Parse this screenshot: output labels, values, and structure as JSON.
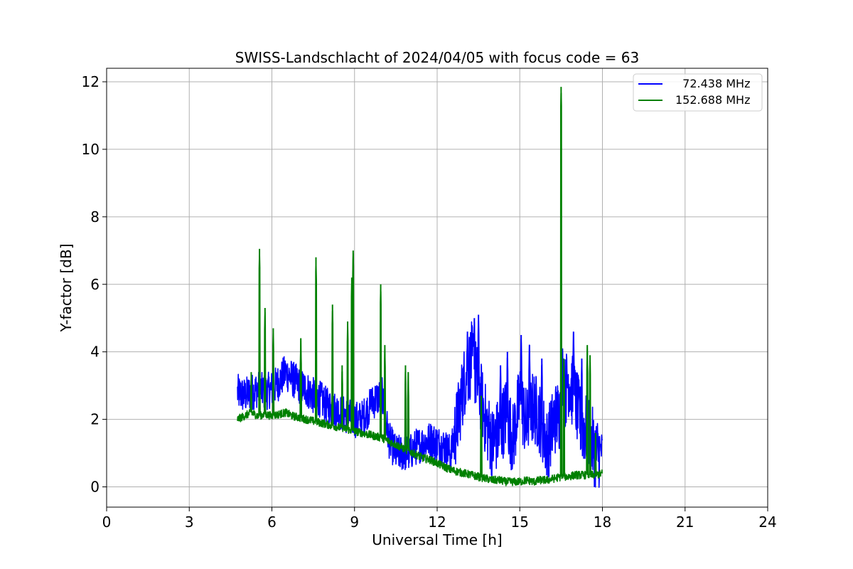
{
  "chart_data": {
    "type": "line",
    "title": "SWISS-Landschlacht of 2024/04/05 with focus code = 63",
    "xlabel": "Universal Time [h]",
    "ylabel": "Y-factor [dB]",
    "xlim": [
      0,
      24
    ],
    "ylim": [
      -0.6,
      12.4
    ],
    "xticks": [
      0,
      3,
      6,
      9,
      12,
      15,
      18,
      21,
      24
    ],
    "yticks": [
      0,
      2,
      4,
      6,
      8,
      10,
      12
    ],
    "grid": true,
    "legend_position": "top-right",
    "series": [
      {
        "name": "  72.438 MHz",
        "color": "#0000ff",
        "x": [
          4.75,
          5.0,
          5.25,
          5.5,
          5.75,
          6.0,
          6.25,
          6.5,
          6.75,
          7.0,
          7.25,
          7.5,
          7.75,
          8.0,
          8.25,
          8.5,
          8.75,
          9.0,
          9.25,
          9.5,
          9.75,
          10.0,
          10.25,
          10.5,
          10.75,
          11.0,
          11.25,
          11.5,
          11.75,
          12.0,
          12.25,
          12.5,
          12.75,
          13.0,
          13.25,
          13.5,
          13.75,
          14.0,
          14.25,
          14.5,
          14.75,
          15.0,
          15.25,
          15.5,
          15.75,
          16.0,
          16.25,
          16.5,
          16.75,
          17.0,
          17.25,
          17.5,
          17.75,
          18.0
        ],
        "values": [
          2.8,
          2.7,
          2.8,
          2.9,
          2.8,
          2.9,
          3.1,
          3.4,
          3.2,
          3.0,
          2.9,
          2.7,
          2.6,
          2.4,
          2.3,
          2.2,
          2.1,
          2.0,
          2.0,
          2.3,
          2.6,
          2.7,
          1.4,
          1.0,
          1.0,
          1.0,
          1.2,
          1.3,
          1.4,
          1.3,
          1.2,
          1.0,
          2.0,
          3.2,
          3.8,
          3.0,
          2.0,
          1.3,
          1.6,
          2.2,
          1.4,
          2.6,
          1.8,
          2.4,
          2.0,
          1.2,
          2.0,
          2.2,
          3.2,
          2.6,
          1.8,
          1.6,
          1.0,
          1.1
        ],
        "peaks": [
          [
            13.1,
            4.6
          ],
          [
            13.35,
            5.0
          ],
          [
            13.5,
            5.1
          ],
          [
            14.3,
            3.6
          ],
          [
            14.55,
            4.0
          ],
          [
            15.05,
            4.5
          ],
          [
            15.35,
            4.2
          ],
          [
            15.8,
            3.8
          ],
          [
            16.55,
            4.1
          ],
          [
            16.95,
            4.6
          ],
          [
            17.25,
            3.8
          ],
          [
            17.45,
            2.6
          ],
          [
            10.05,
            2.9
          ],
          [
            9.6,
            2.9
          ]
        ]
      },
      {
        "name": "152.688 MHz",
        "color": "#008000",
        "x": [
          4.75,
          5.0,
          5.25,
          5.5,
          5.75,
          6.0,
          6.25,
          6.5,
          6.75,
          7.0,
          7.25,
          7.5,
          7.75,
          8.0,
          8.25,
          8.5,
          8.75,
          9.0,
          9.25,
          9.5,
          9.75,
          10.0,
          10.25,
          10.5,
          10.75,
          11.0,
          11.25,
          11.5,
          11.75,
          12.0,
          12.25,
          12.5,
          12.75,
          13.0,
          13.25,
          13.5,
          13.75,
          14.0,
          14.25,
          14.5,
          14.75,
          15.0,
          15.25,
          15.5,
          15.75,
          16.0,
          16.25,
          16.5,
          16.75,
          17.0,
          17.25,
          17.5,
          17.75,
          18.0
        ],
        "values": [
          2.0,
          2.1,
          2.2,
          2.1,
          2.15,
          2.1,
          2.15,
          2.2,
          2.1,
          2.05,
          2.0,
          1.95,
          1.9,
          1.85,
          1.8,
          1.75,
          1.7,
          1.65,
          1.6,
          1.55,
          1.5,
          1.45,
          1.35,
          1.25,
          1.15,
          1.05,
          0.95,
          0.85,
          0.8,
          0.7,
          0.6,
          0.5,
          0.45,
          0.4,
          0.35,
          0.3,
          0.25,
          0.2,
          0.2,
          0.15,
          0.15,
          0.15,
          0.2,
          0.15,
          0.2,
          0.2,
          0.25,
          0.3,
          0.3,
          0.35,
          0.35,
          0.35,
          0.35,
          0.4
        ],
        "peaks": [
          [
            5.55,
            7.05
          ],
          [
            5.75,
            5.3
          ],
          [
            5.25,
            3.4
          ],
          [
            6.05,
            4.7
          ],
          [
            7.05,
            4.4
          ],
          [
            7.6,
            6.8
          ],
          [
            8.2,
            5.4
          ],
          [
            8.55,
            3.6
          ],
          [
            8.75,
            4.9
          ],
          [
            8.9,
            6.2
          ],
          [
            8.95,
            7.0
          ],
          [
            9.95,
            6.0
          ],
          [
            10.1,
            4.2
          ],
          [
            10.85,
            3.6
          ],
          [
            10.95,
            3.4
          ],
          [
            13.6,
            2.7
          ],
          [
            16.5,
            11.85
          ],
          [
            16.6,
            3.8
          ],
          [
            17.45,
            4.2
          ],
          [
            17.55,
            3.9
          ],
          [
            17.75,
            1.6
          ]
        ]
      }
    ]
  }
}
